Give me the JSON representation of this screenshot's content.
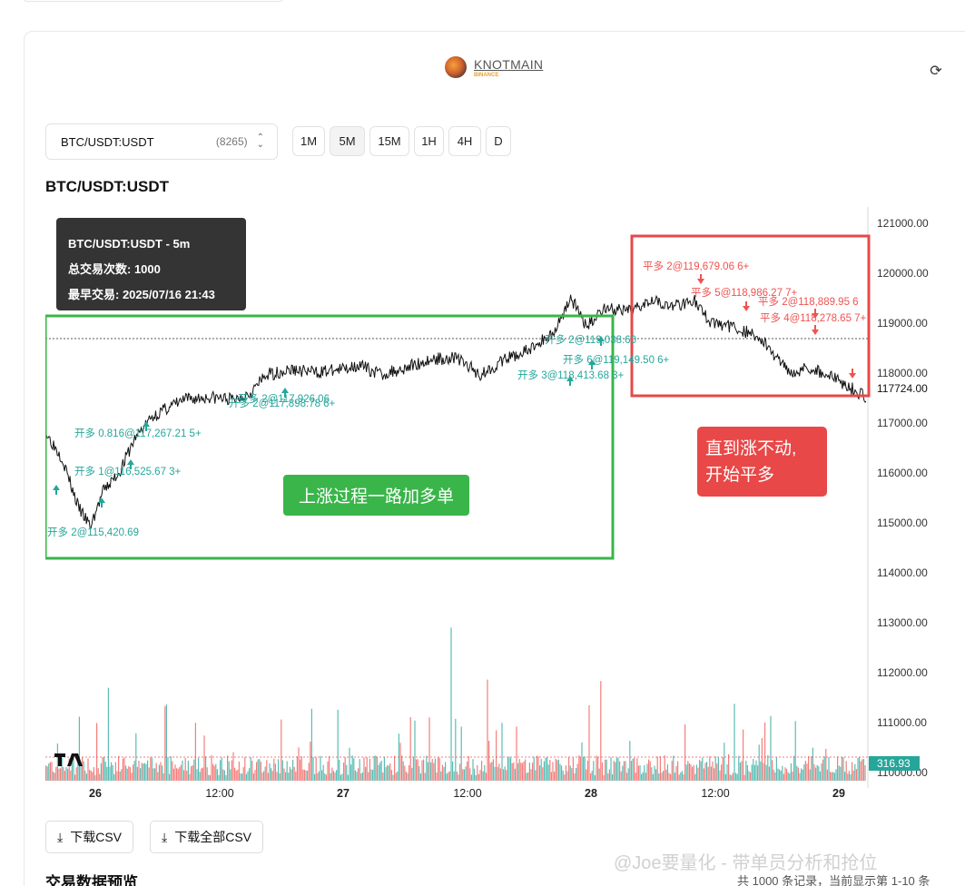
{
  "header": {
    "brand": "KNOTMAIN",
    "exchange": "BINANCE"
  },
  "toolbar": {
    "symbol": "BTC/USDT:USDT",
    "count": "(8265)",
    "timeframes": [
      "1M",
      "5M",
      "15M",
      "1H",
      "4H",
      "D"
    ],
    "active_timeframe": "5M"
  },
  "chart_title": "BTC/USDT:USDT",
  "tooltip": {
    "line1": "BTC/USDT:USDT - 5m",
    "line2": "总交易次数: 1000",
    "line3": "最早交易: 2025/07/16 21:43"
  },
  "callouts": {
    "green": "上涨过程一路加多单",
    "red_line1": "直到涨不动,",
    "red_line2": "开始平多"
  },
  "buttons": {
    "download_csv": "下载CSV",
    "download_all_csv": "下载全部CSV"
  },
  "section_title": "交易数据预览",
  "footer_count": "共 1000 条记录，当前显示第 1-10 条",
  "watermark": "@Joe要量化 - 带单员分析和抢位",
  "chart_data": {
    "type": "line",
    "title": "BTC/USDT:USDT",
    "x_ticks": [
      "26",
      "12:00",
      "27",
      "12:00",
      "28",
      "12:00",
      "29"
    ],
    "y_ticks": [
      "121000.00",
      "120000.00",
      "119000.00",
      "118000.00",
      "117000.00",
      "116000.00",
      "115000.00",
      "114000.00",
      "113000.00",
      "112000.00",
      "111000.00",
      "110000.00"
    ],
    "ylim": [
      110000,
      121000
    ],
    "last_price": "117724.00",
    "volume_last": "316.93",
    "price_series": [
      {
        "t": 0.0,
        "p": 116800
      },
      {
        "t": 0.02,
        "p": 116300
      },
      {
        "t": 0.04,
        "p": 115300
      },
      {
        "t": 0.055,
        "p": 114900
      },
      {
        "t": 0.07,
        "p": 115600
      },
      {
        "t": 0.09,
        "p": 116000
      },
      {
        "t": 0.11,
        "p": 116700
      },
      {
        "t": 0.13,
        "p": 117100
      },
      {
        "t": 0.15,
        "p": 117300
      },
      {
        "t": 0.17,
        "p": 117450
      },
      {
        "t": 0.2,
        "p": 117500
      },
      {
        "t": 0.23,
        "p": 117450
      },
      {
        "t": 0.25,
        "p": 117600
      },
      {
        "t": 0.27,
        "p": 117950
      },
      {
        "t": 0.3,
        "p": 118050
      },
      {
        "t": 0.33,
        "p": 118000
      },
      {
        "t": 0.36,
        "p": 118050
      },
      {
        "t": 0.38,
        "p": 118150
      },
      {
        "t": 0.41,
        "p": 117950
      },
      {
        "t": 0.44,
        "p": 118100
      },
      {
        "t": 0.47,
        "p": 118250
      },
      {
        "t": 0.5,
        "p": 118300
      },
      {
        "t": 0.53,
        "p": 117950
      },
      {
        "t": 0.56,
        "p": 118250
      },
      {
        "t": 0.59,
        "p": 118450
      },
      {
        "t": 0.62,
        "p": 118800
      },
      {
        "t": 0.64,
        "p": 119500
      },
      {
        "t": 0.66,
        "p": 118900
      },
      {
        "t": 0.68,
        "p": 119300
      },
      {
        "t": 0.71,
        "p": 119200
      },
      {
        "t": 0.74,
        "p": 119500
      },
      {
        "t": 0.76,
        "p": 119300
      },
      {
        "t": 0.79,
        "p": 119450
      },
      {
        "t": 0.81,
        "p": 119000
      },
      {
        "t": 0.84,
        "p": 118900
      },
      {
        "t": 0.87,
        "p": 118700
      },
      {
        "t": 0.89,
        "p": 118300
      },
      {
        "t": 0.91,
        "p": 118000
      },
      {
        "t": 0.93,
        "p": 118100
      },
      {
        "t": 0.96,
        "p": 117900
      },
      {
        "t": 1.0,
        "p": 117500
      }
    ],
    "long_annotations": [
      "开多 0.816@117,267.21 5+",
      "开多 1@116,525.67 3+",
      "开多 2@115,420.69",
      "开多 2@117,926.06",
      "开多 2@117,898.78 6+",
      "开多 2@119,038.60",
      "开多 6@119,149.50 6+",
      "开多 3@118,413.68 3+"
    ],
    "close_annotations": [
      "平多 2@119,679.06 6+",
      "平多 5@118,986.27 7+",
      "平多 2@118,889.95 6",
      "平多 4@118,278.65 7+"
    ]
  },
  "colors": {
    "up": "#26a69a",
    "down": "#ef5350",
    "green_box": "#3ab54a",
    "red_box": "#e84848",
    "price_line": "#111111"
  }
}
